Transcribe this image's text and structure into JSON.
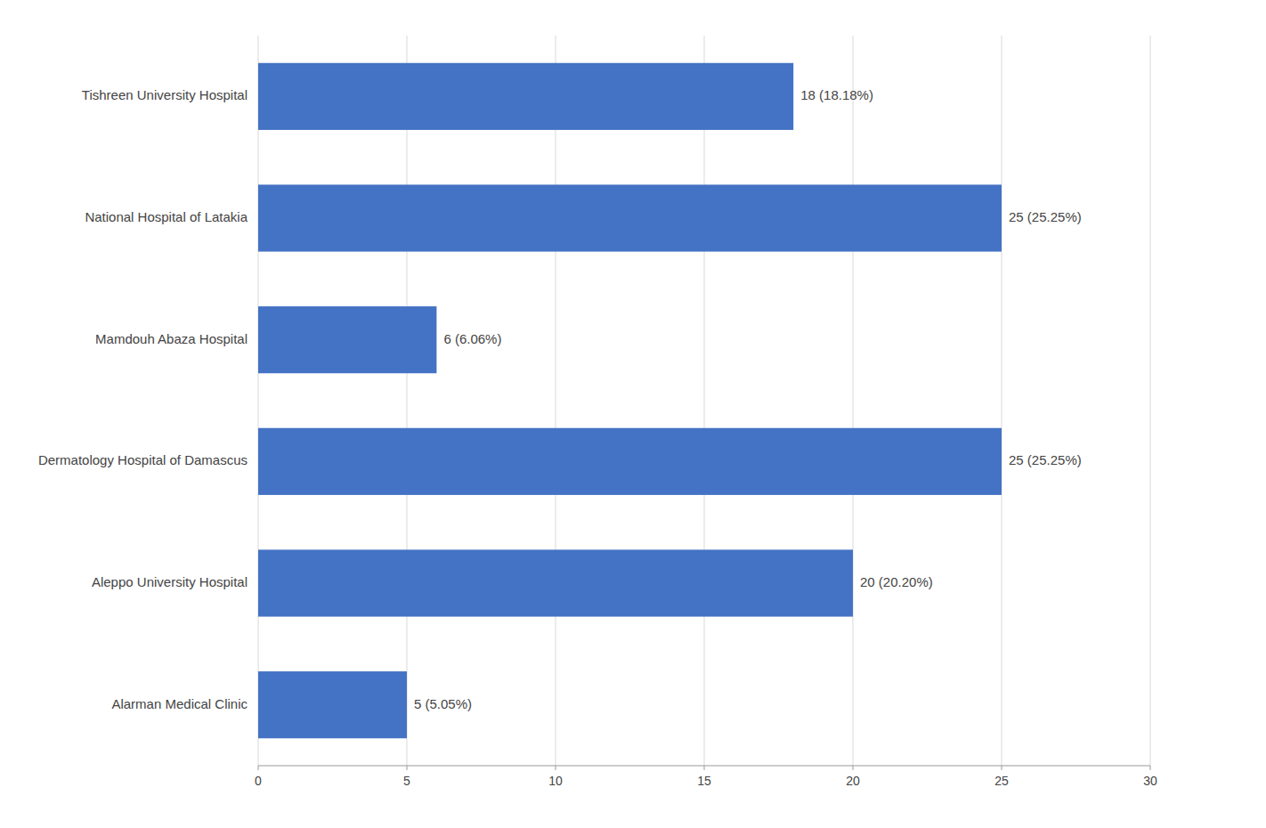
{
  "chart_data": {
    "type": "bar",
    "orientation": "horizontal",
    "categories": [
      "Alarman Medical Clinic",
      "Aleppo University Hospital",
      "Dermatology Hospital of Damascus",
      "Mamdouh Abaza Hospital",
      "National Hospital of Latakia",
      "Tishreen University Hospital"
    ],
    "values": [
      5,
      20,
      25,
      6,
      25,
      18
    ],
    "value_labels": [
      "5 (5.05%)",
      "20 (20.20%)",
      "25 (25.25%)",
      "6 (6.06%)",
      "25 (25.25%)",
      "18 (18.18%)"
    ],
    "data_labels": true,
    "color": "#4472C4",
    "xlim": [
      0,
      30
    ],
    "xticks": [
      0,
      5,
      10,
      15,
      20,
      25,
      30
    ],
    "grid": true
  }
}
